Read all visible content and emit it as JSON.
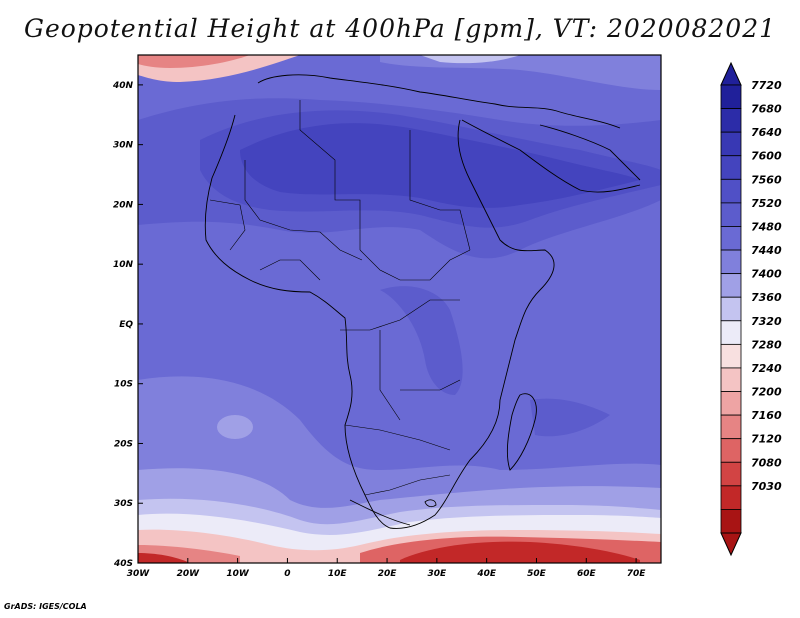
{
  "title": "Geopotential Height at 400hPa [gpm], VT: 2020082021",
  "footer": "GrADS: IGES/COLA",
  "map": {
    "lon_range": [
      -30,
      75
    ],
    "lat_range": [
      -40,
      45
    ],
    "lat_ticks": [
      {
        "value": 40,
        "label": "40N"
      },
      {
        "value": 30,
        "label": "30N"
      },
      {
        "value": 20,
        "label": "20N"
      },
      {
        "value": 10,
        "label": "10N"
      },
      {
        "value": 0,
        "label": "EQ"
      },
      {
        "value": -10,
        "label": "10S"
      },
      {
        "value": -20,
        "label": "20S"
      },
      {
        "value": -30,
        "label": "30S"
      },
      {
        "value": -40,
        "label": "40S"
      }
    ],
    "lon_ticks": [
      {
        "value": -30,
        "label": "30W"
      },
      {
        "value": -20,
        "label": "20W"
      },
      {
        "value": -10,
        "label": "10W"
      },
      {
        "value": 0,
        "label": "0"
      },
      {
        "value": 10,
        "label": "10E"
      },
      {
        "value": 20,
        "label": "20E"
      },
      {
        "value": 30,
        "label": "30E"
      },
      {
        "value": 40,
        "label": "40E"
      },
      {
        "value": 50,
        "label": "50E"
      },
      {
        "value": 60,
        "label": "60E"
      },
      {
        "value": 70,
        "label": "70E"
      }
    ]
  },
  "colorbar": {
    "levels": [
      "7720",
      "7680",
      "7640",
      "7600",
      "7560",
      "7520",
      "7480",
      "7440",
      "7400",
      "7360",
      "7320",
      "7280",
      "7240",
      "7200",
      "7160",
      "7120",
      "7080",
      "7030"
    ],
    "colors": [
      "#20209a",
      "#2c2ca8",
      "#3838b4",
      "#4444be",
      "#5050c6",
      "#5c5ccc",
      "#6a6ad4",
      "#8080dc",
      "#a0a0e6",
      "#c4c4f0",
      "#ecebf8",
      "#f8e0e0",
      "#f4c4c4",
      "#eea4a4",
      "#e68484",
      "#de6464",
      "#d24444",
      "#c22828",
      "#a81414"
    ]
  }
}
